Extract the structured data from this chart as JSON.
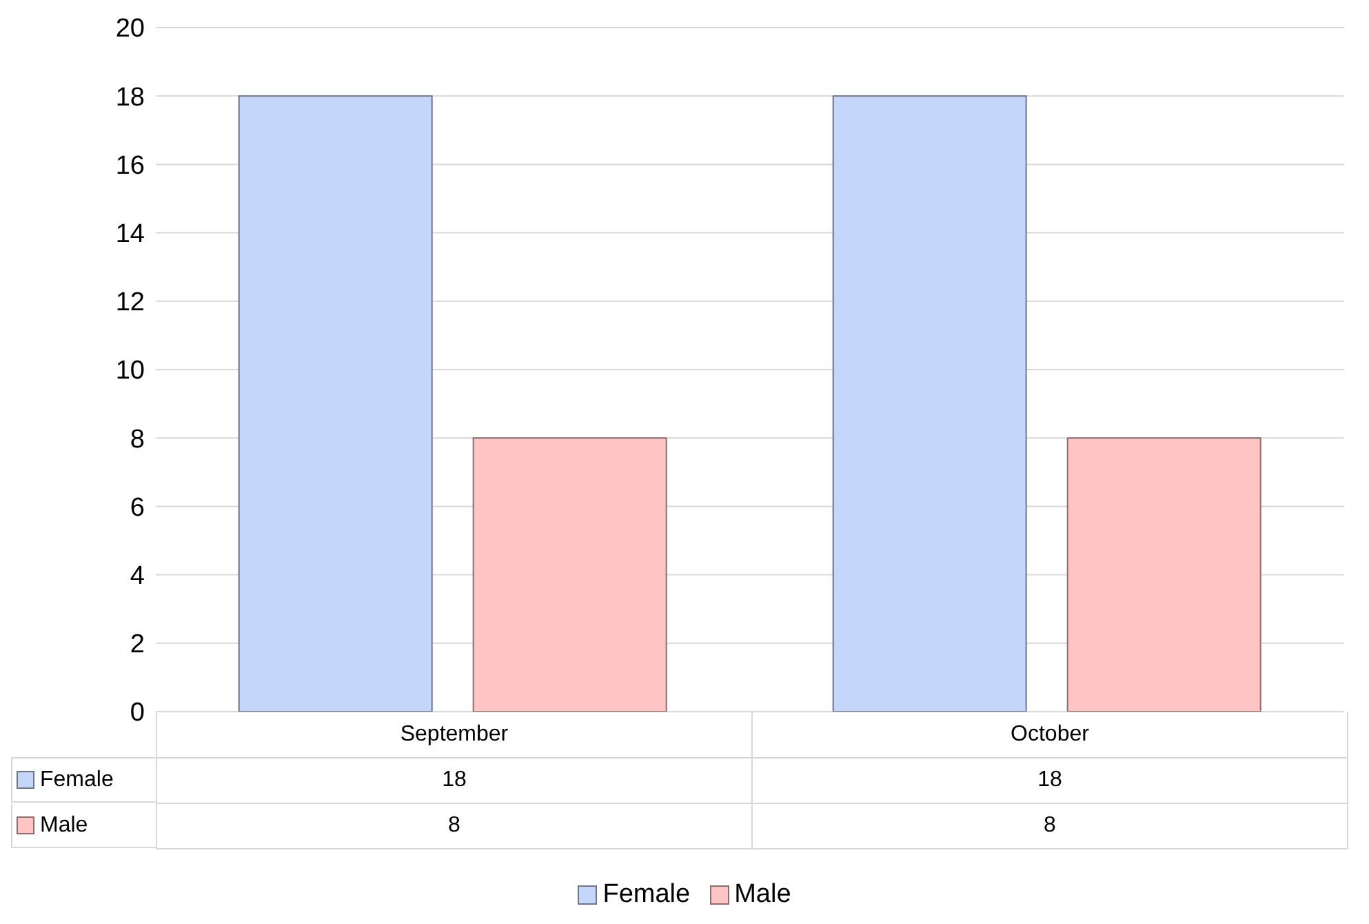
{
  "chart_data": {
    "type": "bar",
    "categories": [
      "September",
      "October"
    ],
    "series": [
      {
        "name": "Female",
        "color": "#c4d7fa",
        "values": [
          18,
          18
        ]
      },
      {
        "name": "Male",
        "color": "#ffc4c4",
        "values": [
          8,
          8
        ]
      }
    ],
    "ylim": [
      0,
      20
    ],
    "yticks": [
      0,
      2,
      4,
      6,
      8,
      10,
      12,
      14,
      16,
      18,
      20
    ],
    "grid": "y",
    "legend": "bottom",
    "data_labels": true
  }
}
